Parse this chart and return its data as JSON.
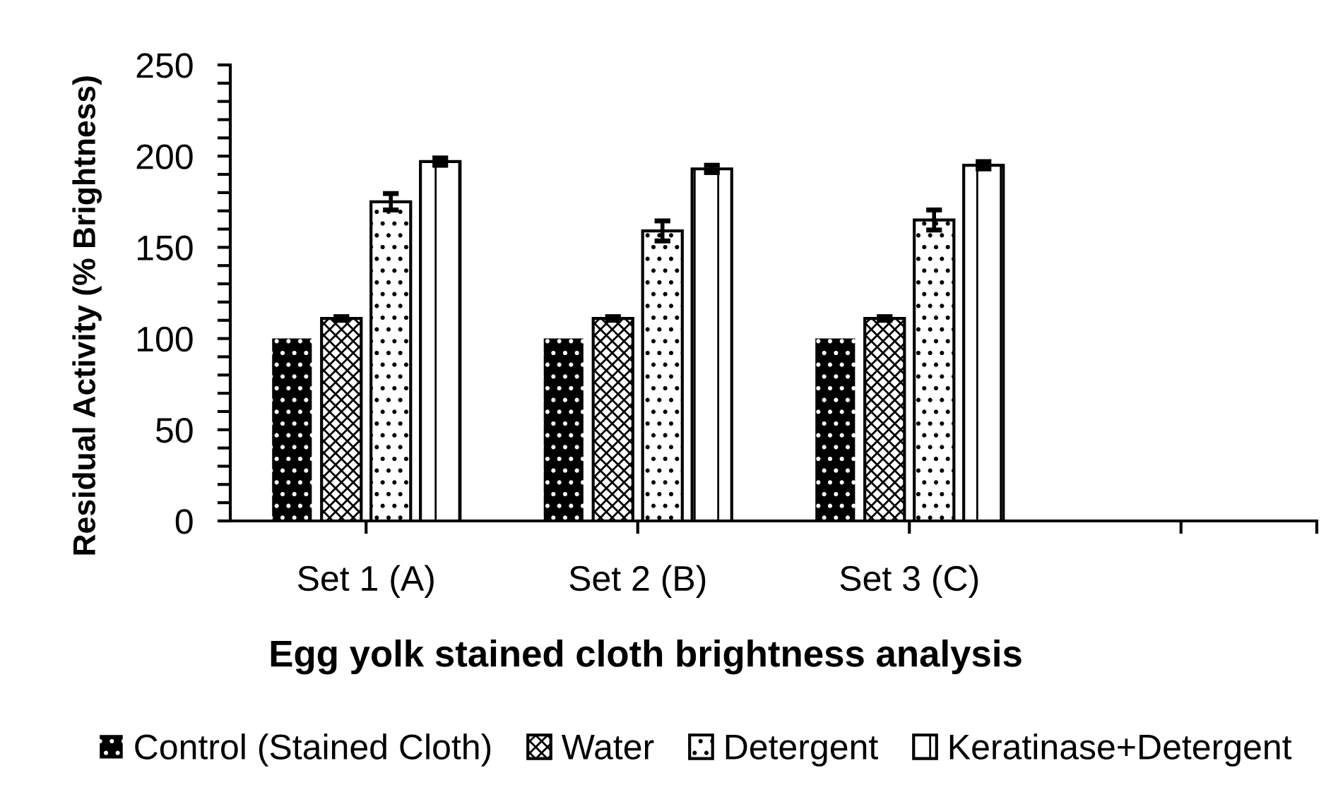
{
  "chart_data": {
    "type": "bar",
    "xlabel": "Egg yolk stained cloth brightness analysis",
    "ylabel": "Residual Activity (% Brightness)",
    "categories": [
      "Set 1 (A)",
      "Set 2 (B)",
      "Set 3 (C)",
      null
    ],
    "series": [
      {
        "name": "Control (Stained Cloth)",
        "color": "#000000",
        "values": [
          100,
          100,
          100,
          null
        ]
      },
      {
        "name": "Water",
        "color": "#000000",
        "values": [
          111,
          111,
          111,
          null
        ],
        "errors": [
          1,
          1,
          1,
          null
        ]
      },
      {
        "name": "Detergent",
        "color": "#000000",
        "values": [
          175,
          159,
          165,
          null
        ],
        "errors": [
          4.5,
          5.5,
          5.5,
          null
        ]
      },
      {
        "name": "Keratinase+Detergent",
        "color": "#000000",
        "values": [
          197,
          193,
          195,
          null
        ],
        "errors": [
          2,
          2,
          2,
          null
        ]
      }
    ],
    "ylim": [
      0,
      250
    ],
    "yticks": [
      0,
      {
        "value": 10,
        "label": null
      },
      {
        "value": 20,
        "label": null
      },
      {
        "value": 30,
        "label": null
      },
      {
        "value": 40,
        "label": null
      },
      50,
      {
        "value": 60,
        "label": null
      },
      {
        "value": 70,
        "label": null
      },
      {
        "value": 80,
        "label": null
      },
      {
        "value": 90,
        "label": null
      },
      100,
      {
        "value": 110,
        "label": null
      },
      {
        "value": 120,
        "label": null
      },
      {
        "value": 130,
        "label": null
      },
      {
        "value": 140,
        "label": null
      },
      150,
      {
        "value": 160,
        "label": null
      },
      {
        "value": 170,
        "label": null
      },
      {
        "value": 180,
        "label": null
      },
      {
        "value": 190,
        "label": null
      },
      200,
      {
        "value": 210,
        "label": null
      },
      {
        "value": 220,
        "label": null
      },
      {
        "value": 230,
        "label": null
      },
      {
        "value": 240,
        "label": null
      },
      250
    ],
    "legend": "bottom"
  }
}
